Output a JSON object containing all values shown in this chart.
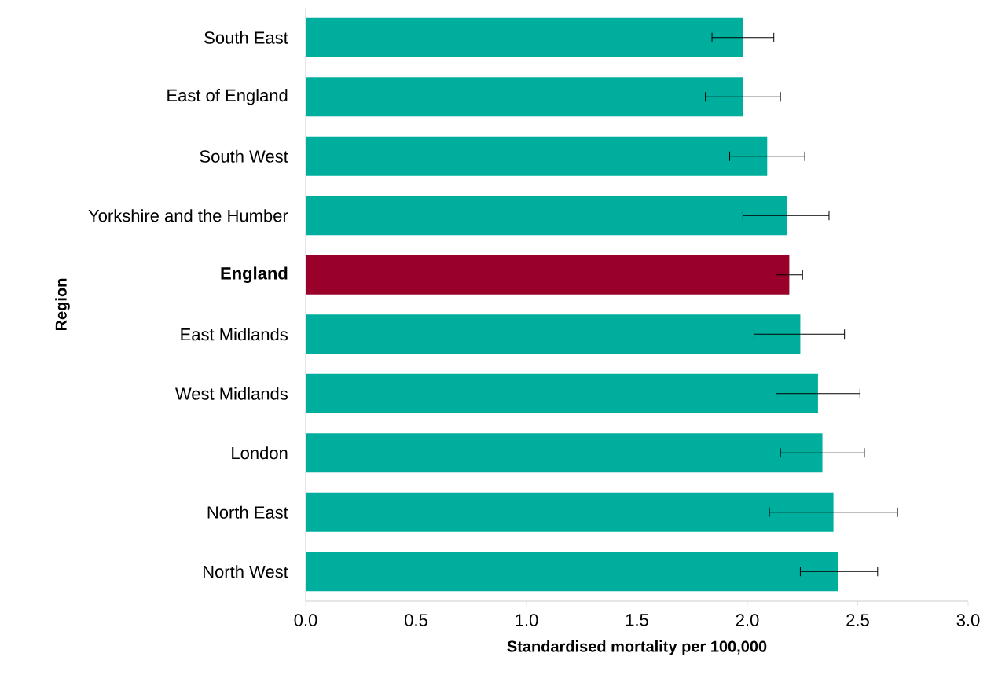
{
  "chart_data": {
    "type": "bar",
    "orientation": "horizontal",
    "xlabel": "Standardised mortality per 100,000",
    "ylabel": "Region",
    "categories": [
      "South East",
      "East of England",
      "South West",
      "Yorkshire and the Humber",
      "**England**",
      "East Midlands",
      "West Midlands",
      "London",
      "North East",
      "North West"
    ],
    "values": [
      1.98,
      1.98,
      2.09,
      2.18,
      2.19,
      2.24,
      2.32,
      2.34,
      2.39,
      2.41
    ],
    "colors": [
      "#00ae9e",
      "#00ae9e",
      "#00ae9e",
      "#00ae9e",
      "#99002a",
      "#00ae9e",
      "#00ae9e",
      "#00ae9e",
      "#00ae9e",
      "#00ae9e"
    ],
    "errors": [
      [
        1.84,
        2.12
      ],
      [
        1.81,
        2.15
      ],
      [
        1.92,
        2.26
      ],
      [
        1.98,
        2.37
      ],
      [
        2.13,
        2.25
      ],
      [
        2.03,
        2.44
      ],
      [
        2.13,
        2.51
      ],
      [
        2.15,
        2.53
      ],
      [
        2.1,
        2.68
      ],
      [
        2.24,
        2.59
      ]
    ],
    "xlim": [
      0,
      3
    ],
    "xticks": [
      {
        "value": 0,
        "label": "0.0"
      },
      {
        "value": 0.5,
        "label": "0.5"
      },
      {
        "value": 1,
        "label": "1.0"
      },
      {
        "value": 1.5,
        "label": "1.5"
      },
      {
        "value": 2,
        "label": "2.0"
      },
      {
        "value": 2.5,
        "label": "2.5"
      },
      {
        "value": 3,
        "label": "3.0"
      }
    ]
  }
}
